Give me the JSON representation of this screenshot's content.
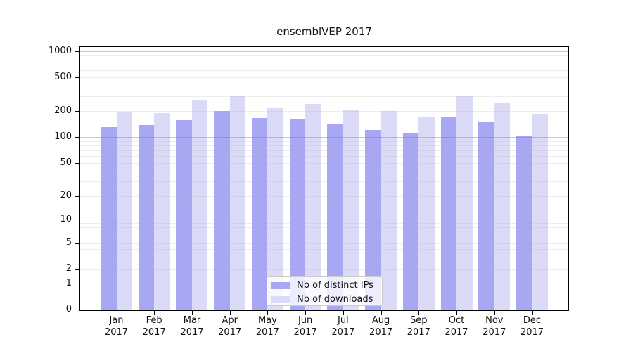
{
  "title": "ensemblVEP 2017",
  "colors": {
    "distinct_ips_bar": "#a7a7f3",
    "downloads_bar": "#dbdbf8",
    "grid_major": "rgba(130,130,130,0.45)",
    "grid_minor": "rgba(175,175,175,0.22)",
    "axis": "#000000"
  },
  "chart_data": {
    "type": "bar",
    "title": "ensemblVEP 2017",
    "scale": "log1p",
    "grid": true,
    "legend_position": "lower center",
    "categories": [
      "Jan",
      "Feb",
      "Mar",
      "Apr",
      "May",
      "Jun",
      "Jul",
      "Aug",
      "Sep",
      "Oct",
      "Nov",
      "Dec"
    ],
    "year_label": "2017",
    "series": [
      {
        "name": "Nb of distinct IPs",
        "color": "#a7a7f3",
        "values": [
          131,
          138,
          158,
          200,
          167,
          165,
          142,
          121,
          113,
          172,
          150,
          103
        ]
      },
      {
        "name": "Nb of downloads",
        "color": "#dbdbf8",
        "values": [
          193,
          190,
          268,
          300,
          217,
          242,
          206,
          202,
          170,
          297,
          249,
          184
        ]
      }
    ],
    "xlabel": "",
    "ylabel": "",
    "y_ticks": [
      0,
      1,
      2,
      5,
      10,
      20,
      50,
      100,
      200,
      500,
      1000
    ],
    "y_major_gridlines": [
      1,
      10,
      100,
      1000
    ],
    "ylim": [
      0,
      1175
    ]
  }
}
